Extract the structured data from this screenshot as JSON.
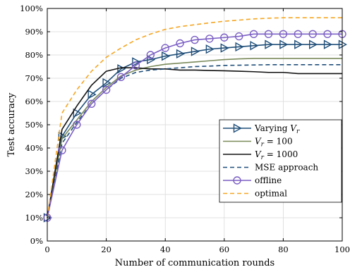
{
  "chart_data": {
    "type": "line",
    "title": "",
    "xlabel": "Number of communication rounds",
    "ylabel": "Test accuracy",
    "xlim": [
      0,
      100
    ],
    "ylim": [
      0,
      100
    ],
    "xticks": [
      0,
      20,
      40,
      60,
      80,
      100
    ],
    "yticks": [
      0,
      10,
      20,
      30,
      40,
      50,
      60,
      70,
      80,
      90,
      100
    ],
    "ytick_labels": [
      "0%",
      "10%",
      "20%",
      "30%",
      "40%",
      "50%",
      "60%",
      "70%",
      "80%",
      "90%",
      "100%"
    ],
    "grid": true,
    "legend_position": "center-right",
    "series": [
      {
        "name": "Varying V_r",
        "legend_main": "Varying ",
        "legend_var": "V",
        "legend_sub": "r",
        "legend_tail": "",
        "color": "#1f4e79",
        "dash": "solid",
        "marker": "triangle-right",
        "x": [
          0,
          5,
          10,
          15,
          20,
          25,
          30,
          35,
          40,
          45,
          50,
          55,
          60,
          65,
          70,
          75,
          80,
          85,
          90,
          95,
          100
        ],
        "y": [
          10,
          45,
          55,
          63,
          68,
          74,
          77,
          78,
          79.5,
          80.5,
          81.5,
          82.5,
          83,
          83.5,
          84,
          84.5,
          84.5,
          84.5,
          84.5,
          84.5,
          84.5
        ]
      },
      {
        "name": "V_r = 100",
        "legend_main": "",
        "legend_var": "V",
        "legend_sub": "r",
        "legend_tail": " = 100",
        "color": "#7a8a5a",
        "dash": "solid",
        "marker": "none",
        "x": [
          0,
          5,
          10,
          15,
          20,
          25,
          30,
          35,
          40,
          45,
          50,
          55,
          60,
          65,
          70,
          75,
          80,
          85,
          90,
          95,
          100
        ],
        "y": [
          10,
          44,
          52,
          60,
          66,
          71,
          73.5,
          75,
          76,
          76.5,
          77,
          77.5,
          78,
          78.3,
          78.5,
          78.5,
          78.5,
          78.5,
          78.5,
          78.5,
          78.5
        ]
      },
      {
        "name": "V_r = 1000",
        "legend_main": "",
        "legend_var": "V",
        "legend_sub": "r",
        "legend_tail": " = 1000",
        "color": "#111111",
        "dash": "solid",
        "marker": "none",
        "x": [
          0,
          5,
          10,
          15,
          20,
          25,
          30,
          35,
          40,
          45,
          50,
          55,
          60,
          65,
          70,
          75,
          80,
          85,
          90,
          95,
          100
        ],
        "y": [
          10,
          48,
          58,
          67,
          73,
          74.5,
          74.5,
          74,
          74,
          73.5,
          73.5,
          73.3,
          73.2,
          73,
          72.8,
          72.5,
          72.5,
          72,
          72,
          72,
          72
        ]
      },
      {
        "name": "MSE approach",
        "legend_main": "MSE approach",
        "legend_var": "",
        "legend_sub": "",
        "legend_tail": "",
        "color": "#1f4e79",
        "dash": "dashed",
        "marker": "none",
        "x": [
          0,
          5,
          10,
          15,
          20,
          25,
          30,
          35,
          40,
          45,
          50,
          55,
          60,
          65,
          70,
          75,
          80,
          85,
          90,
          95,
          100
        ],
        "y": [
          10,
          42,
          51,
          59,
          65,
          70,
          72.5,
          73.5,
          74,
          74.5,
          75,
          75.2,
          75.5,
          75.6,
          75.7,
          75.8,
          75.8,
          75.8,
          75.8,
          75.8,
          75.8
        ]
      },
      {
        "name": "offline",
        "legend_main": "offline",
        "legend_var": "",
        "legend_sub": "",
        "legend_tail": "",
        "color": "#7b5fc4",
        "dash": "solid",
        "marker": "circle",
        "x": [
          0,
          5,
          10,
          15,
          20,
          25,
          30,
          35,
          40,
          45,
          50,
          55,
          60,
          65,
          70,
          75,
          80,
          85,
          90,
          95,
          100
        ],
        "y": [
          10,
          39,
          50,
          59,
          65,
          70.5,
          75.5,
          80,
          83,
          85,
          86.5,
          87,
          87.5,
          88,
          89,
          89,
          89,
          89,
          89,
          89,
          89
        ]
      },
      {
        "name": "optimal",
        "legend_main": "optimal",
        "legend_var": "",
        "legend_sub": "",
        "legend_tail": "",
        "color": "#f5a623",
        "dash": "dashed",
        "marker": "none",
        "x": [
          0,
          5,
          10,
          15,
          20,
          25,
          30,
          35,
          40,
          45,
          50,
          55,
          60,
          65,
          70,
          75,
          80,
          85,
          90,
          95,
          100
        ],
        "y": [
          10,
          55,
          65,
          73,
          79,
          83,
          86.5,
          89,
          91,
          92.2,
          93,
          93.8,
          94.5,
          95,
          95.5,
          95.8,
          96,
          96,
          96,
          96,
          96
        ]
      }
    ]
  }
}
